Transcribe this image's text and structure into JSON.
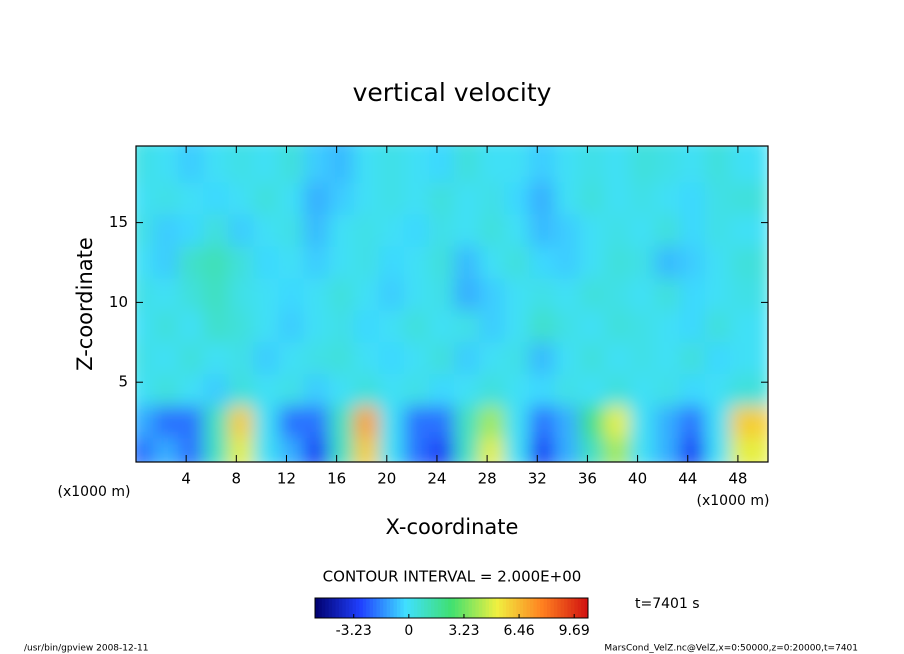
{
  "chart_data": {
    "type": "heatmap",
    "title": "vertical velocity",
    "x_label": "X-coordinate",
    "y_label": "Z-coordinate",
    "x_unit": "(x1000 m)",
    "y_unit": "(x1000 m)",
    "contour_note": "CONTOUR INTERVAL = 2.000E+00",
    "time_note": "t=7401 s",
    "footer_left": "/usr/bin/gpview  2008-12-11",
    "footer_right": "MarsCond_VelZ.nc@VelZ,x=0:50000,z=0:20000,t=7401",
    "xlim": [
      0,
      50.4
    ],
    "ylim": [
      0,
      19.8
    ],
    "xticks": [
      4,
      8,
      12,
      16,
      20,
      24,
      28,
      32,
      36,
      40,
      44,
      48
    ],
    "yticks": [
      5,
      10,
      15
    ],
    "x": [
      1,
      3,
      5,
      7,
      9,
      11,
      13,
      15,
      17,
      19,
      21,
      23,
      25,
      27,
      29,
      31,
      33,
      35,
      37,
      39,
      41,
      43,
      45,
      47,
      49
    ],
    "y": [
      1,
      3,
      5,
      7,
      9,
      11,
      13,
      15,
      17,
      19
    ],
    "values": [
      [
        -2,
        -1,
        -2,
        1,
        5,
        0,
        -1,
        -3,
        1,
        6,
        0,
        -2,
        -3,
        1,
        5,
        0,
        -3,
        -1,
        1,
        4,
        0,
        -1,
        -3,
        0,
        5
      ],
      [
        -1,
        -2,
        -2,
        1,
        6,
        0,
        -2,
        -2,
        1,
        7,
        0,
        -2,
        -2,
        1,
        4,
        0,
        -2,
        -1,
        2,
        5,
        0,
        -1,
        -2,
        0,
        6
      ],
      [
        0,
        0.5,
        0,
        -0.5,
        0.5,
        0,
        0.3,
        -0.5,
        0,
        0.5,
        0,
        0.3,
        -0.3,
        0,
        0.5,
        0,
        -0.3,
        0.3,
        0,
        0.5,
        0,
        0.3,
        -0.3,
        0,
        0.5
      ],
      [
        0.3,
        0,
        0.5,
        0,
        0.3,
        -0.5,
        0,
        0.3,
        0.5,
        0,
        -0.3,
        0,
        0.5,
        -0.5,
        0,
        0.3,
        -0.8,
        0,
        0.5,
        0,
        0.3,
        0,
        0.5,
        -0.3,
        0
      ],
      [
        0,
        0.5,
        0,
        0.8,
        0.5,
        0,
        -0.5,
        0,
        0.3,
        -0.3,
        0,
        0.5,
        0,
        0.3,
        -0.5,
        0,
        0.8,
        0.3,
        0,
        0.5,
        0.3,
        0,
        -0.3,
        0.5,
        0
      ],
      [
        0.3,
        0,
        0.5,
        1,
        0.3,
        0,
        -0.3,
        0,
        0.5,
        0,
        -0.5,
        0,
        0.3,
        -1,
        -0.5,
        0,
        0.3,
        0,
        0.5,
        0.3,
        0,
        0.5,
        -0.3,
        0,
        0.3
      ],
      [
        0,
        -0.5,
        0.8,
        1.2,
        0.5,
        -0.3,
        0,
        -0.5,
        0,
        0.3,
        -0.3,
        0,
        0.5,
        -0.8,
        0,
        0.5,
        -0.3,
        -0.5,
        0,
        0.5,
        0.3,
        -0.8,
        -0.5,
        0,
        0.5
      ],
      [
        0.3,
        -0.5,
        -0.3,
        0.5,
        -0.5,
        0,
        0.3,
        -0.8,
        0,
        0.3,
        0,
        -0.3,
        0.3,
        0,
        0.5,
        0,
        -0.8,
        -0.5,
        0,
        0.3,
        0,
        0.5,
        -0.3,
        0.3,
        0
      ],
      [
        0,
        0.3,
        0,
        -0.3,
        0,
        0.5,
        0,
        -1,
        -0.5,
        0,
        0.3,
        0,
        0.5,
        0,
        0.3,
        -0.3,
        -1,
        0,
        0.5,
        0,
        0.3,
        0,
        -0.3,
        0.3,
        0.5
      ],
      [
        0.3,
        0,
        -0.5,
        0,
        0.3,
        0,
        0.5,
        -0.5,
        -0.8,
        0,
        0.3,
        0,
        -0.3,
        0.5,
        0,
        0,
        -0.5,
        0,
        0.3,
        0,
        0.5,
        0.3,
        0,
        0.5,
        0
      ]
    ],
    "clim": [
      -5.5,
      10.5
    ],
    "colormap": [
      "#00006e",
      "#2040ff",
      "#40e0ff",
      "#40e070",
      "#f0f040",
      "#ff8020",
      "#d01010"
    ],
    "colorbar_ticks": [
      -3.23,
      0,
      3.23,
      6.46,
      9.69
    ]
  }
}
